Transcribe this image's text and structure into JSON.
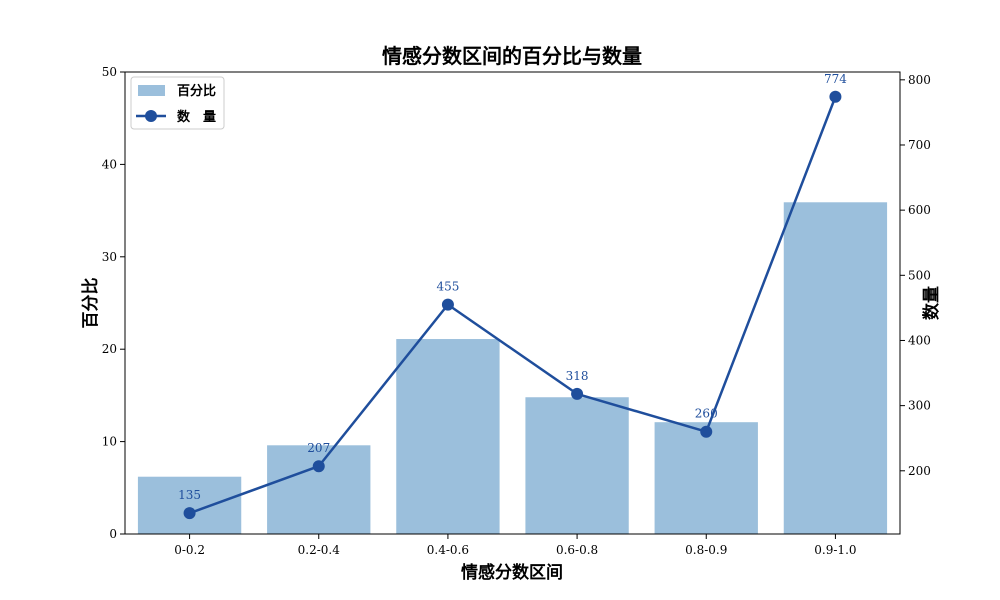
{
  "chart_data": {
    "type": "bar",
    "title": "情感分数区间的百分比与数量",
    "xlabel": "情感分数区间",
    "ylabel": "百分比",
    "y2label": "数量",
    "categories": [
      "0-0.2",
      "0.2-0.4",
      "0.4-0.6",
      "0.6-0.8",
      "0.8-0.9",
      "0.9-1.0"
    ],
    "series": [
      {
        "name": "百分比",
        "kind": "bar",
        "axis": "left",
        "color": "#9bbfdc",
        "values": [
          6.2,
          9.6,
          21.1,
          14.8,
          12.1,
          35.9
        ]
      },
      {
        "name": "数量",
        "legend_label": "数　量",
        "kind": "line",
        "axis": "right",
        "color": "#1f4e9c",
        "values": [
          135,
          207,
          455,
          318,
          260,
          774
        ]
      }
    ],
    "ylim": [
      0,
      50
    ],
    "yticks": [
      0,
      10,
      20,
      30,
      40,
      50
    ],
    "y2lim": [
      103,
      812
    ],
    "y2ticks": [
      200,
      300,
      400,
      500,
      600,
      700,
      800
    ],
    "grid": false,
    "legend_position": "top-left"
  }
}
